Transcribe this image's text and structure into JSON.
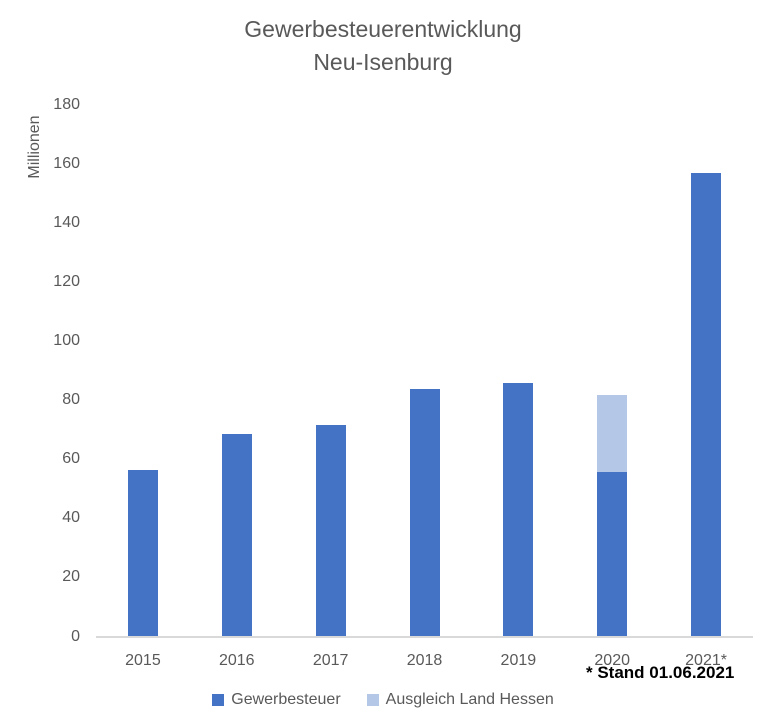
{
  "title": {
    "line1": "Gewerbesteuerentwicklung",
    "line2": "Neu-Isenburg"
  },
  "chart_data": {
    "type": "bar",
    "stacked": true,
    "title": "Gewerbesteuerentwicklung Neu-Isenburg",
    "categories": [
      "2015",
      "2016",
      "2017",
      "2018",
      "2019",
      "2020",
      "2021*"
    ],
    "series": [
      {
        "name": "Gewerbesteuer",
        "color": "#4472C4",
        "values": [
          56,
          68.5,
          71.5,
          83.5,
          85.5,
          55.5,
          156.5
        ]
      },
      {
        "name": "Ausgleich Land Hessen",
        "color": "#B4C7E7",
        "values": [
          0,
          0,
          0,
          0,
          0,
          26,
          0
        ]
      }
    ],
    "xlabel": "",
    "ylabel": "Millionen",
    "ylim": [
      0,
      180
    ],
    "yticks": [
      0,
      20,
      40,
      60,
      80,
      100,
      120,
      140,
      160,
      180
    ],
    "grid": false,
    "legend_position": "bottom",
    "axis_line_color": "#D9D9D9"
  },
  "annotation": {
    "text": "* Stand 01.06.2021"
  }
}
